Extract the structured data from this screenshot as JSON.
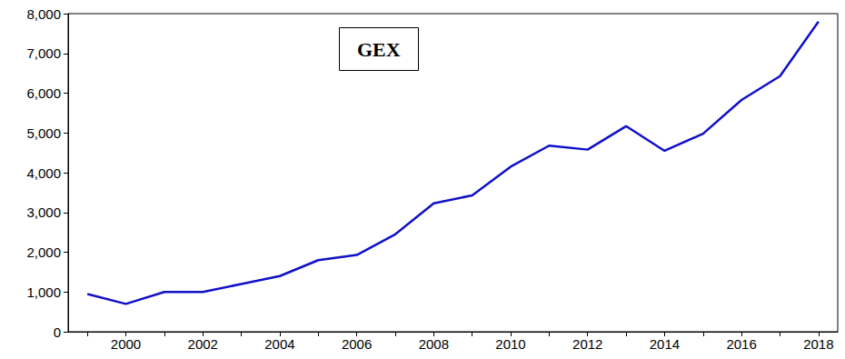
{
  "chart_data": {
    "type": "line",
    "title": "GEX",
    "categories": [
      null,
      "2000",
      null,
      "2002",
      null,
      "2004",
      null,
      "2006",
      null,
      "2008",
      null,
      "2010",
      null,
      "2012",
      null,
      "2014",
      null,
      "2016",
      null,
      "2018"
    ],
    "values": [
      950,
      700,
      1000,
      1000,
      1200,
      1400,
      1800,
      1930,
      2450,
      3230,
      3430,
      4150,
      4680,
      4580,
      5170,
      4550,
      4980,
      5830,
      6430,
      7800
    ],
    "color": "#1010c8",
    "ylim": [
      0,
      8000
    ],
    "yticks": [
      0,
      {
        "value": 1000,
        "label": "1,000"
      },
      {
        "value": 2000,
        "label": "2,000"
      },
      {
        "value": 3000,
        "label": "3,000"
      },
      {
        "value": 4000,
        "label": "4,000"
      },
      {
        "value": 5000,
        "label": "5,000"
      },
      {
        "value": 6000,
        "label": "6,000"
      },
      {
        "value": 7000,
        "label": "7,000"
      },
      {
        "value": 8000,
        "label": "8,000"
      }
    ],
    "grid": false
  }
}
